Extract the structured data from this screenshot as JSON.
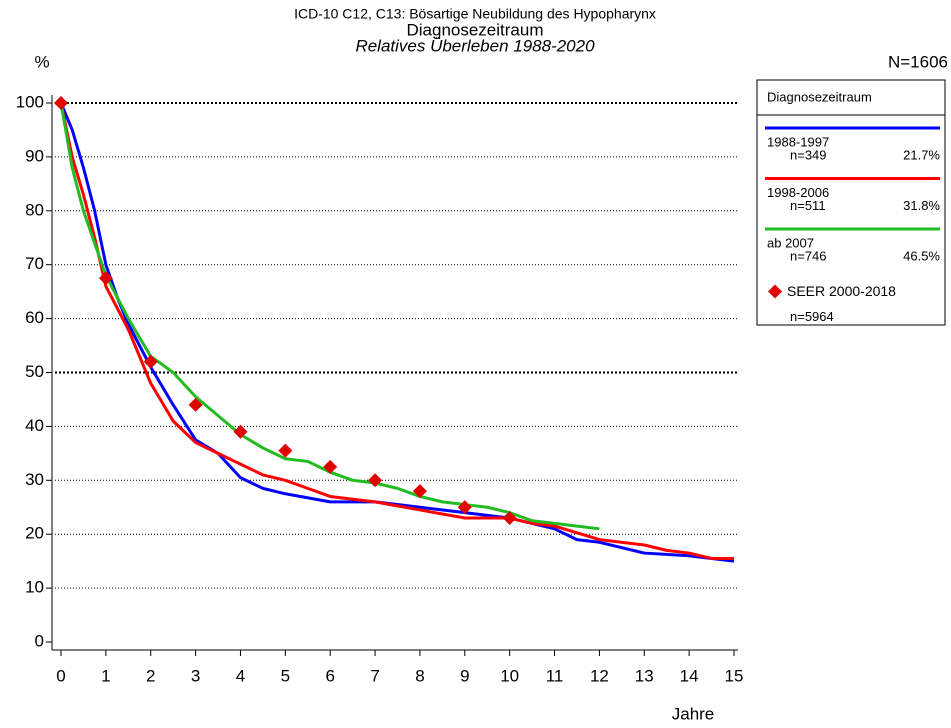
{
  "chart_data": {
    "type": "line",
    "title": "ICD-10 C12, C13: Bösartige Neubildung des Hypopharynx",
    "subtitle": "Diagnosezeitraum",
    "subtitle2": "Relatives Überleben 1988-2020",
    "y_label": "%",
    "x_label": "Jahre",
    "total_label": "N=1606",
    "legend_title": "Diagnosezeitraum",
    "legend": "right",
    "grid": true,
    "emphasized_gridlines": [
      50,
      100
    ],
    "xlim": [
      0,
      15
    ],
    "ylim": [
      0,
      100
    ],
    "xticks": [
      0,
      1,
      2,
      3,
      4,
      5,
      6,
      7,
      8,
      9,
      10,
      11,
      12,
      13,
      14,
      15
    ],
    "yticks": [
      0,
      10,
      20,
      30,
      40,
      50,
      60,
      70,
      80,
      90,
      100
    ],
    "series": [
      {
        "name": "1988-1997",
        "n_label": "n=349",
        "share_label": "21.7%",
        "color": "#0000ff",
        "x": [
          0,
          0.25,
          0.5,
          0.75,
          1,
          1.25,
          1.5,
          2,
          2.5,
          3,
          3.5,
          4,
          4.5,
          5,
          6,
          7,
          8,
          9,
          10,
          11,
          11.5,
          12,
          13,
          14,
          14.5,
          15
        ],
        "values": [
          100,
          95,
          88,
          80,
          70,
          64,
          59,
          51,
          44,
          37.5,
          35,
          30.5,
          28.5,
          27.5,
          26,
          26,
          25,
          24,
          23,
          21,
          19,
          18.5,
          16.5,
          16,
          15.5,
          15
        ]
      },
      {
        "name": "1998-2006",
        "n_label": "n=511",
        "share_label": "31.8%",
        "color": "#ff0000",
        "x": [
          0,
          0.25,
          0.5,
          0.75,
          1,
          1.5,
          2,
          2.5,
          3,
          3.5,
          4,
          4.5,
          5,
          5.5,
          6,
          7,
          8,
          9,
          10,
          10.5,
          11,
          12,
          13,
          13.5,
          14,
          14.5,
          15
        ],
        "values": [
          100,
          90,
          83,
          75,
          66,
          58,
          48,
          41,
          37,
          35,
          33,
          31,
          30,
          28.5,
          27,
          26,
          24.5,
          23,
          23,
          22,
          21.5,
          19,
          18,
          17,
          16.5,
          15.5,
          15.5
        ]
      },
      {
        "name": "ab 2007",
        "n_label": "n=746",
        "share_label": "46.5%",
        "color": "#22bb22",
        "x": [
          0,
          0.25,
          0.5,
          1,
          1.5,
          2,
          2.5,
          3,
          3.5,
          4,
          4.5,
          5,
          5.5,
          6,
          6.5,
          7,
          7.5,
          8,
          8.5,
          9,
          9.5,
          10,
          10.5,
          11,
          11.5,
          12
        ],
        "values": [
          100,
          88,
          80,
          68,
          60,
          53,
          50,
          45.5,
          42,
          38.5,
          36,
          34,
          33.5,
          31.5,
          30,
          29.5,
          28.5,
          27,
          26,
          25.5,
          25,
          24,
          22.5,
          22,
          21.5,
          21
        ]
      },
      {
        "name": "SEER 2000-2018",
        "n_label": "n=5964",
        "color": "#e00000",
        "marker": "diamond",
        "x": [
          0,
          1,
          2,
          3,
          4,
          5,
          6,
          7,
          8,
          9,
          10
        ],
        "values": [
          100,
          67.5,
          52,
          44,
          39,
          35.5,
          32.5,
          30,
          28,
          25,
          23
        ]
      }
    ]
  }
}
